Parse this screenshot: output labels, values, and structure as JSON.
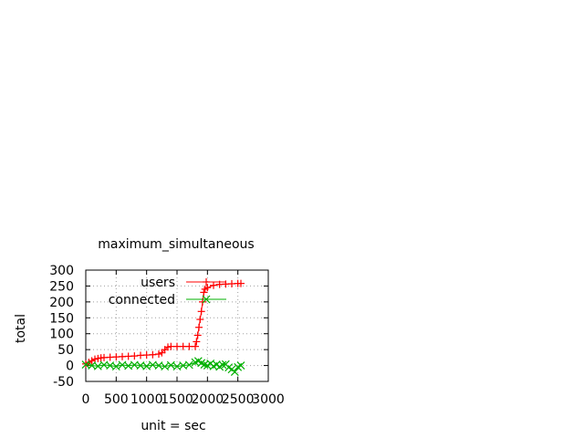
{
  "chart_data": {
    "type": "line",
    "title": "maximum_simultaneous",
    "xlabel": "unit = sec",
    "ylabel": "total",
    "xlim": [
      0,
      3000
    ],
    "ylim": [
      -50,
      300
    ],
    "x_ticks": [
      0,
      500,
      1000,
      1500,
      2000,
      2500,
      3000
    ],
    "y_ticks": [
      -50,
      0,
      50,
      100,
      150,
      200,
      250,
      300
    ],
    "x_tick_labels": [
      "0",
      "500",
      "1000",
      "1500",
      "2000",
      "2500",
      "3000"
    ],
    "y_tick_labels": [
      "-50",
      "0",
      "50",
      "100",
      "150",
      "200",
      "250",
      "300"
    ],
    "grid": true,
    "legend_position": "top-right",
    "series": [
      {
        "name": "users",
        "color": "#ff0000",
        "marker": "plus",
        "x": [
          0,
          50,
          100,
          150,
          200,
          250,
          300,
          400,
          500,
          600,
          700,
          800,
          900,
          1000,
          1100,
          1200,
          1250,
          1300,
          1350,
          1400,
          1500,
          1600,
          1700,
          1800,
          1820,
          1840,
          1860,
          1880,
          1900,
          1920,
          1940,
          1960,
          2000,
          2100,
          2200,
          2300,
          2400,
          2500,
          2550
        ],
        "y": [
          5,
          10,
          15,
          20,
          22,
          24,
          25,
          26,
          27,
          28,
          29,
          30,
          32,
          33,
          34,
          36,
          40,
          50,
          58,
          60,
          60,
          60,
          60,
          60,
          75,
          95,
          120,
          145,
          170,
          200,
          230,
          240,
          245,
          252,
          255,
          256,
          257,
          258,
          258
        ]
      },
      {
        "name": "connected",
        "color": "#00b000",
        "marker": "cross",
        "x": [
          0,
          100,
          200,
          300,
          400,
          500,
          600,
          700,
          800,
          900,
          1000,
          1100,
          1200,
          1300,
          1400,
          1500,
          1600,
          1700,
          1800,
          1850,
          1900,
          1950,
          2000,
          2050,
          2100,
          2150,
          2200,
          2250,
          2300,
          2350,
          2400,
          2450,
          2500,
          2550
        ],
        "y": [
          3,
          0,
          -2,
          2,
          0,
          -3,
          2,
          -1,
          2,
          0,
          -2,
          2,
          0,
          -3,
          1,
          -3,
          0,
          2,
          10,
          14,
          8,
          3,
          0,
          6,
          -2,
          3,
          -4,
          2,
          4,
          -6,
          -12,
          -20,
          -5,
          0
        ]
      }
    ]
  }
}
